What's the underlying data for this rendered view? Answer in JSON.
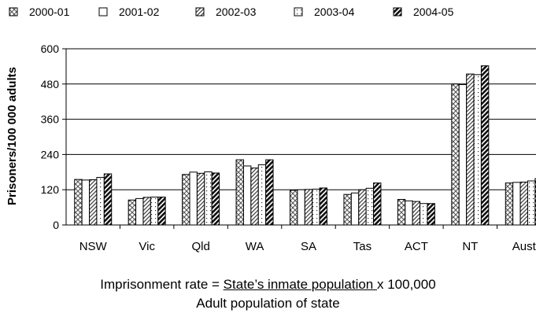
{
  "chart_data": {
    "type": "bar",
    "title": "",
    "xlabel": "",
    "ylabel": "Prisoners/100 000 adults",
    "ylim": [
      0,
      600
    ],
    "yticks": [
      "0",
      "120",
      "240",
      "360",
      "480",
      "600"
    ],
    "grid": true,
    "legend_position": "top",
    "categories": [
      "NSW",
      "Vic",
      "Qld",
      "WA",
      "SA",
      "Tas",
      "ACT",
      "NT",
      "Aust"
    ],
    "series": [
      {
        "name": "2000-01",
        "pattern": "crosshatch",
        "values": [
          155,
          85,
          172,
          222,
          118,
          104,
          87,
          480,
          143
        ]
      },
      {
        "name": "2001-02",
        "pattern": "blank",
        "values": [
          153,
          90,
          180,
          201,
          120,
          109,
          82,
          478,
          145
        ]
      },
      {
        "name": "2002-03",
        "pattern": "diagonal",
        "values": [
          154,
          94,
          176,
          194,
          121,
          120,
          80,
          514,
          146
        ]
      },
      {
        "name": "2003-04",
        "pattern": "dotted",
        "values": [
          162,
          95,
          181,
          205,
          122,
          125,
          73,
          512,
          150
        ]
      },
      {
        "name": "2004-05",
        "pattern": "bold-diagonal",
        "values": [
          174,
          95,
          177,
          222,
          126,
          143,
          73,
          542,
          158
        ]
      }
    ]
  },
  "formula": {
    "prefix": "Imprisonment rate  = ",
    "numerator": "State’s inmate population ",
    "suffix": "x 100,000",
    "denominator": "Adult population of state"
  }
}
